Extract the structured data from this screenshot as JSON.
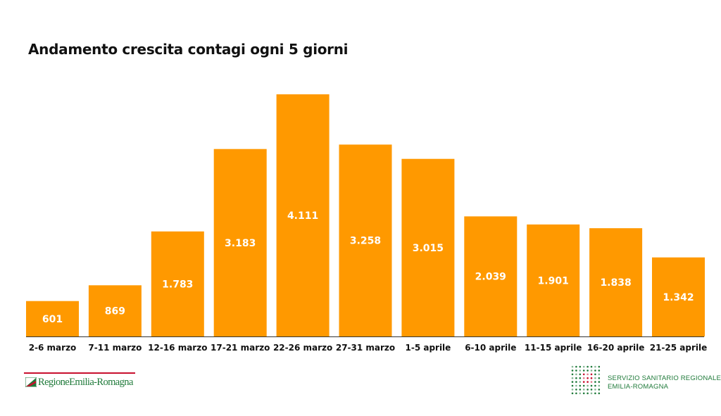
{
  "chart_data": {
    "type": "bar",
    "title": "Andamento crescita contagi ogni 5 giorni",
    "categories": [
      "2-6 marzo",
      "7-11 marzo",
      "12-16 marzo",
      "17-21 marzo",
      "22-26 marzo",
      "27-31 marzo",
      "1-5 aprile",
      "6-10 aprile",
      "11-15 aprile",
      "16-20 aprile",
      "21-25 aprile"
    ],
    "values": [
      601,
      869,
      1783,
      3183,
      4111,
      3258,
      3015,
      2039,
      1901,
      1838,
      1342
    ],
    "value_labels": [
      "601",
      "869",
      "1.783",
      "3.183",
      "4.111",
      "3.258",
      "3.015",
      "2.039",
      "1.901",
      "1.838",
      "1.342"
    ],
    "xlabel": "",
    "ylabel": "",
    "ylim": [
      0,
      4111
    ],
    "grid": false,
    "legend": "none",
    "bar_color": "#ff9900",
    "label_color": "#ffffff"
  },
  "footer": {
    "left_logo_text": "RegioneEmilia-Romagna",
    "right_logo_line1": "SERVIZIO SANITARIO REGIONALE",
    "right_logo_line2": "EMILIA-ROMAGNA"
  },
  "colors": {
    "logo_red": "#c8102e",
    "logo_green": "#1f7a3a"
  }
}
